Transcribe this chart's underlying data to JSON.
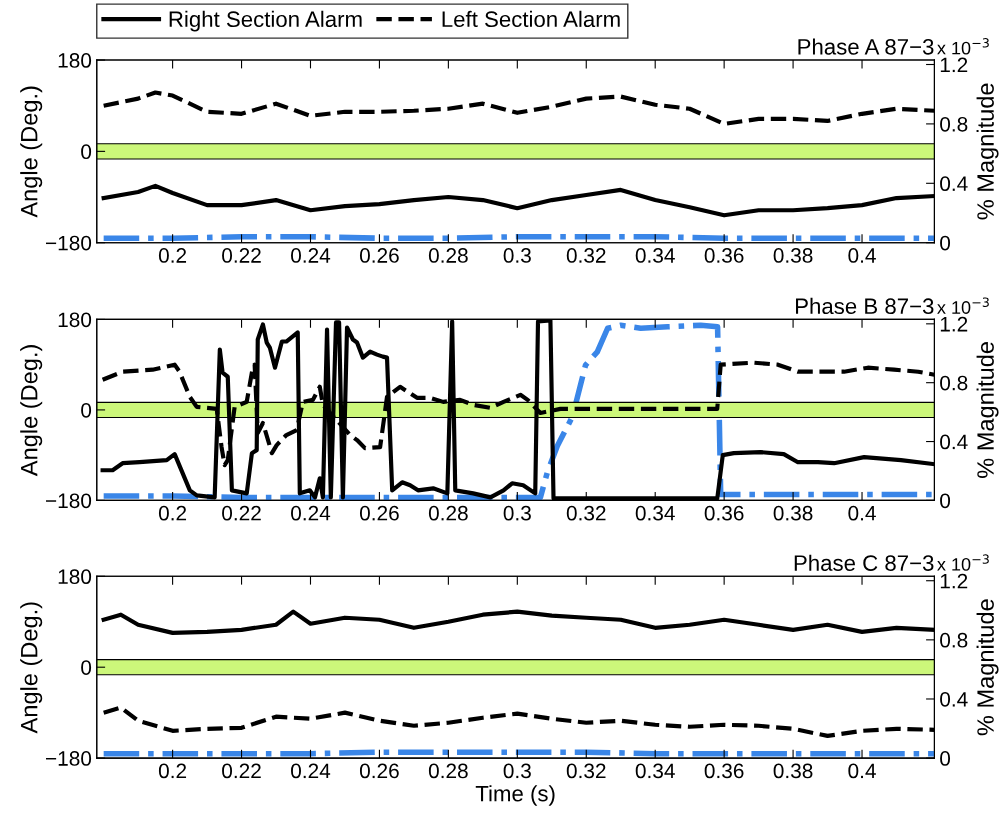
{
  "chart_data": [
    {
      "type": "line",
      "title": "Phase A 87−3",
      "ylabel": "Angle (Deg.)",
      "y2label": "% Magnitude",
      "annotations": [
        "x 10$^{−3}$"
      ],
      "legend": "top",
      "xlim": [
        0.178,
        0.421
      ],
      "xticks": [
        0.2,
        0.22,
        0.24,
        0.26,
        0.28,
        0.3,
        0.32,
        0.34,
        0.36,
        0.38,
        0.4
      ],
      "ylim": [
        -180,
        180
      ],
      "yticks": [
        180,
        0,
        -180
      ],
      "y2lim": [
        0,
        1.23
      ],
      "y2ticks": [
        0,
        0.4,
        0.8,
        1.2
      ],
      "bands": [
        {
          "axis": "y",
          "from": -15,
          "to": 15,
          "color": "#ccf77a"
        }
      ],
      "series": [
        {
          "name": "Right Section Alarm",
          "color": "#000000",
          "line_style": "solid",
          "x": [
            0.18,
            0.19,
            0.195,
            0.2,
            0.21,
            0.22,
            0.23,
            0.24,
            0.25,
            0.26,
            0.27,
            0.28,
            0.29,
            0.3,
            0.31,
            0.32,
            0.33,
            0.34,
            0.35,
            0.36,
            0.37,
            0.38,
            0.39,
            0.4,
            0.41,
            0.421
          ],
          "values": [
            -92,
            -80,
            -68,
            -82,
            -106,
            -106,
            -96,
            -116,
            -108,
            -104,
            -96,
            -90,
            -96,
            -112,
            -96,
            -86,
            -76,
            -96,
            -110,
            -126,
            -116,
            -116,
            -112,
            -106,
            -92,
            -88
          ]
        },
        {
          "name": "Left Section Alarm",
          "color": "#000000",
          "line_style": "dashed",
          "x": [
            0.18,
            0.19,
            0.195,
            0.2,
            0.21,
            0.22,
            0.23,
            0.24,
            0.25,
            0.26,
            0.27,
            0.28,
            0.29,
            0.3,
            0.31,
            0.32,
            0.33,
            0.34,
            0.35,
            0.36,
            0.37,
            0.38,
            0.39,
            0.4,
            0.41,
            0.421
          ],
          "values": [
            90,
            104,
            116,
            110,
            78,
            74,
            94,
            70,
            78,
            78,
            80,
            84,
            94,
            76,
            88,
            104,
            108,
            92,
            84,
            54,
            64,
            64,
            60,
            74,
            84,
            80
          ]
        },
        {
          "color": "#3a86e8",
          "line_style": "dashdot",
          "axis": "y2",
          "x": [
            0.18,
            0.2,
            0.22,
            0.24,
            0.26,
            0.28,
            0.3,
            0.32,
            0.34,
            0.36,
            0.38,
            0.4,
            0.421
          ],
          "values": [
            0.03,
            0.03,
            0.04,
            0.04,
            0.03,
            0.03,
            0.04,
            0.04,
            0.04,
            0.03,
            0.03,
            0.03,
            0.03
          ]
        }
      ]
    },
    {
      "type": "line",
      "title": "Phase B 87−3",
      "ylabel": "Angle (Deg.)",
      "y2label": "% Magnitude",
      "annotations": [
        "x 10$^{−3}$"
      ],
      "xlim": [
        0.178,
        0.421
      ],
      "xticks": [
        0.2,
        0.22,
        0.24,
        0.26,
        0.28,
        0.3,
        0.32,
        0.34,
        0.36,
        0.38,
        0.4
      ],
      "ylim": [
        -180,
        180
      ],
      "yticks": [
        180,
        0,
        -180
      ],
      "y2lim": [
        0,
        1.23
      ],
      "y2ticks": [
        0,
        0.4,
        0.8,
        1.2
      ],
      "bands": [
        {
          "axis": "y",
          "from": -15,
          "to": 15,
          "color": "#ccf77a"
        }
      ],
      "series": [
        {
          "color": "#000000",
          "line_style": "solid",
          "x": [
            0.1797,
            0.1826,
            0.1855,
            0.1904,
            0.1983,
            0.2006,
            0.205,
            0.207,
            0.2122,
            0.2137,
            0.2145,
            0.216,
            0.2172,
            0.2215,
            0.223,
            0.2244,
            0.2247,
            0.2262,
            0.2273,
            0.2282,
            0.2297,
            0.2317,
            0.233,
            0.2363,
            0.2369,
            0.2398,
            0.2413,
            0.2427,
            0.2436,
            0.2448,
            0.2459,
            0.2474,
            0.2483,
            0.2494,
            0.2506,
            0.2523,
            0.2535,
            0.2552,
            0.2573,
            0.2593,
            0.261,
            0.2622,
            0.2637,
            0.2666,
            0.2689,
            0.2712,
            0.2756,
            0.2797,
            0.2811,
            0.282,
            0.2872,
            0.2922,
            0.296,
            0.2985,
            0.3017,
            0.3052,
            0.306,
            0.3096,
            0.3105,
            0.33,
            0.358,
            0.3596,
            0.3628,
            0.3706,
            0.3773,
            0.3814,
            0.3872,
            0.3919,
            0.4006,
            0.4113,
            0.421
          ],
          "values": [
            -120,
            -120,
            -106,
            -104,
            -100,
            -88,
            -160,
            -170,
            -174,
            120,
            74,
            66,
            -160,
            -166,
            -86,
            -80,
            140,
            170,
            134,
            124,
            84,
            136,
            136,
            154,
            -166,
            -160,
            -174,
            -136,
            -174,
            160,
            -174,
            174,
            174,
            -174,
            164,
            140,
            134,
            104,
            116,
            110,
            106,
            104,
            -160,
            -144,
            -150,
            -160,
            -156,
            -166,
            176,
            -160,
            -166,
            -174,
            -160,
            -146,
            -150,
            -166,
            176,
            178,
            -176,
            -176,
            -176,
            -90,
            -86,
            -84,
            -88,
            -104,
            -104,
            -106,
            -94,
            -100,
            -108
          ]
        },
        {
          "color": "#000000",
          "line_style": "dashed",
          "x": [
            0.1797,
            0.1855,
            0.1942,
            0.2006,
            0.202,
            0.205,
            0.207,
            0.21,
            0.2128,
            0.2142,
            0.2151,
            0.216,
            0.218,
            0.2215,
            0.2233,
            0.2238,
            0.2247,
            0.2262,
            0.2288,
            0.2302,
            0.233,
            0.236,
            0.2378,
            0.2407,
            0.2427,
            0.2436,
            0.2515,
            0.2535,
            0.2558,
            0.2602,
            0.2622,
            0.266,
            0.2709,
            0.2747,
            0.2785,
            0.2834,
            0.2872,
            0.2922,
            0.296,
            0.3009,
            0.303,
            0.3067,
            0.3125,
            0.358,
            0.359,
            0.3686,
            0.3756,
            0.3814,
            0.388,
            0.3948,
            0.4017,
            0.4093,
            0.4163,
            0.421
          ],
          "values": [
            60,
            76,
            80,
            90,
            76,
            26,
            6,
            4,
            2,
            -74,
            -110,
            -100,
            6,
            16,
            86,
            90,
            -46,
            -26,
            -86,
            -70,
            -50,
            -40,
            16,
            20,
            46,
            10,
            -50,
            -60,
            -76,
            -74,
            26,
            46,
            24,
            24,
            16,
            20,
            10,
            4,
            16,
            30,
            20,
            -6,
            2,
            2,
            90,
            94,
            90,
            76,
            76,
            76,
            84,
            80,
            76,
            70
          ]
        },
        {
          "color": "#3a86e8",
          "line_style": "dashdot",
          "axis": "y2",
          "x": [
            0.18,
            0.2,
            0.22,
            0.24,
            0.26,
            0.28,
            0.3,
            0.3067,
            0.3087,
            0.3116,
            0.316,
            0.3198,
            0.3232,
            0.3262,
            0.33,
            0.3358,
            0.3436,
            0.3532,
            0.3581,
            0.359,
            0.37,
            0.38,
            0.39,
            0.4,
            0.421
          ],
          "values": [
            0.03,
            0.03,
            0.02,
            0.02,
            0.02,
            0.02,
            0.02,
            0.02,
            0.19,
            0.37,
            0.57,
            0.92,
            1.01,
            1.17,
            1.19,
            1.17,
            1.18,
            1.19,
            1.18,
            0.04,
            0.04,
            0.04,
            0.04,
            0.04,
            0.04
          ]
        }
      ]
    },
    {
      "type": "line",
      "title": "Phase C 87−3",
      "xlabel": "Time (s)",
      "ylabel": "Angle (Deg.)",
      "y2label": "% Magnitude",
      "annotations": [
        "x 10$^{−3}$"
      ],
      "xlim": [
        0.178,
        0.421
      ],
      "xticks": [
        0.2,
        0.22,
        0.24,
        0.26,
        0.28,
        0.3,
        0.32,
        0.34,
        0.36,
        0.38,
        0.4
      ],
      "ylim": [
        -180,
        180
      ],
      "yticks": [
        180,
        0,
        -180
      ],
      "y2lim": [
        0,
        1.23
      ],
      "y2ticks": [
        0,
        0.4,
        0.8,
        1.2
      ],
      "bands": [
        {
          "axis": "y",
          "from": -15,
          "to": 15,
          "color": "#ccf77a"
        }
      ],
      "series": [
        {
          "color": "#000000",
          "line_style": "solid",
          "x": [
            0.18,
            0.185,
            0.19,
            0.2,
            0.21,
            0.22,
            0.23,
            0.235,
            0.24,
            0.25,
            0.26,
            0.27,
            0.28,
            0.29,
            0.3,
            0.31,
            0.32,
            0.33,
            0.34,
            0.35,
            0.36,
            0.37,
            0.38,
            0.39,
            0.4,
            0.41,
            0.421
          ],
          "values": [
            94,
            104,
            84,
            68,
            70,
            74,
            84,
            110,
            86,
            98,
            94,
            78,
            90,
            104,
            110,
            102,
            98,
            94,
            78,
            84,
            94,
            84,
            74,
            84,
            70,
            78,
            74
          ]
        },
        {
          "color": "#000000",
          "line_style": "dashed",
          "x": [
            0.18,
            0.185,
            0.19,
            0.2,
            0.21,
            0.22,
            0.23,
            0.24,
            0.25,
            0.26,
            0.27,
            0.28,
            0.29,
            0.3,
            0.31,
            0.32,
            0.33,
            0.34,
            0.35,
            0.36,
            0.37,
            0.38,
            0.39,
            0.4,
            0.41,
            0.421
          ],
          "values": [
            -90,
            -80,
            -106,
            -126,
            -122,
            -120,
            -98,
            -102,
            -90,
            -106,
            -116,
            -110,
            -100,
            -92,
            -102,
            -110,
            -106,
            -114,
            -118,
            -114,
            -116,
            -122,
            -136,
            -126,
            -122,
            -124
          ]
        },
        {
          "color": "#3a86e8",
          "line_style": "dashdot",
          "axis": "y2",
          "x": [
            0.18,
            0.2,
            0.22,
            0.24,
            0.26,
            0.28,
            0.3,
            0.32,
            0.34,
            0.36,
            0.38,
            0.4,
            0.421
          ],
          "values": [
            0.03,
            0.03,
            0.03,
            0.03,
            0.04,
            0.04,
            0.04,
            0.04,
            0.03,
            0.03,
            0.03,
            0.03,
            0.03
          ]
        }
      ]
    }
  ]
}
